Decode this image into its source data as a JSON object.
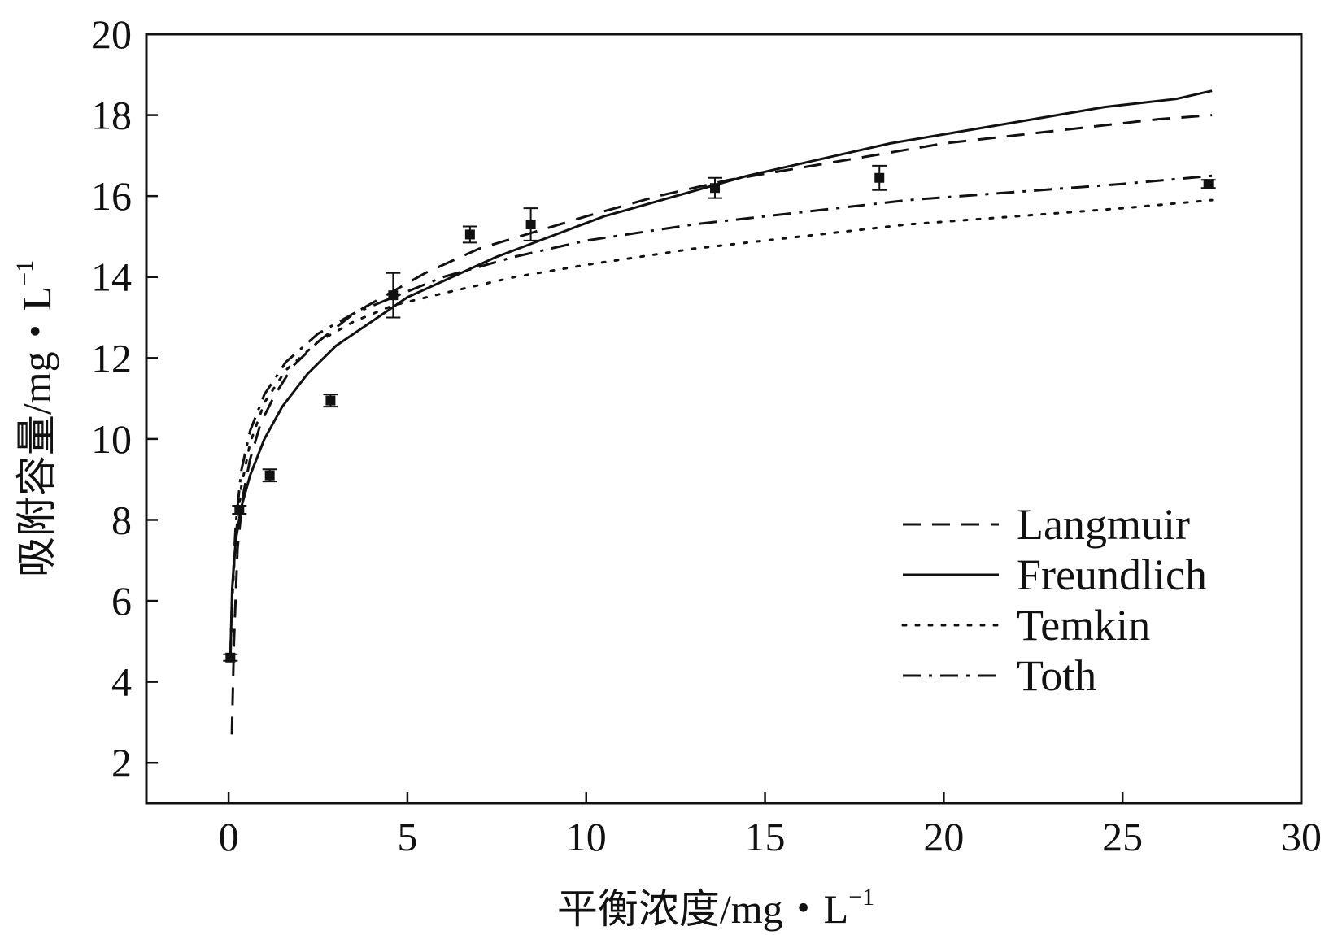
{
  "chart_data": {
    "type": "line",
    "title": "",
    "xlabel": "平衡浓度/mg・L",
    "xlabel_sup": "−1",
    "ylabel": "吸附容量/mg・L",
    "ylabel_sup": "−1",
    "xlim": [
      -2.3,
      30
    ],
    "ylim": [
      1,
      20
    ],
    "xticks": [
      0,
      5,
      10,
      15,
      20,
      25,
      30
    ],
    "yticks": [
      2,
      4,
      6,
      8,
      10,
      12,
      14,
      16,
      18,
      20
    ],
    "xtick_labels": [
      "0",
      "5",
      "10",
      "15",
      "20",
      "25",
      "30"
    ],
    "ytick_labels": [
      "2",
      "4",
      "6",
      "8",
      "10",
      "12",
      "14",
      "16",
      "18",
      "20"
    ],
    "grid": false,
    "legend_position": "bottom-right",
    "observed": {
      "x": [
        0.05,
        0.3,
        1.15,
        2.85,
        4.6,
        6.75,
        8.45,
        13.6,
        18.2,
        27.4
      ],
      "y": [
        4.6,
        8.25,
        9.1,
        10.95,
        13.55,
        15.05,
        15.3,
        16.2,
        16.45,
        16.3
      ],
      "err": [
        0.08,
        0.1,
        0.15,
        0.15,
        0.55,
        0.2,
        0.4,
        0.25,
        0.3,
        0.1
      ]
    },
    "series": [
      {
        "name": "Langmuir",
        "style": "dashed",
        "x": [
          0.09,
          0.15,
          0.25,
          0.4,
          0.6,
          0.9,
          1.3,
          1.8,
          2.5,
          3.5,
          4.5,
          5.5,
          7,
          8.5,
          10,
          12,
          14,
          16,
          18,
          20,
          22,
          24,
          26,
          27.5
        ],
        "y": [
          2.7,
          5.0,
          7.3,
          8.6,
          9.5,
          10.4,
          11.1,
          11.8,
          12.4,
          13.1,
          13.6,
          14.1,
          14.7,
          15.1,
          15.5,
          16.0,
          16.4,
          16.7,
          17.0,
          17.3,
          17.5,
          17.7,
          17.9,
          18.0
        ]
      },
      {
        "name": "Freundlich",
        "style": "solid",
        "x": [
          0.05,
          0.1,
          0.2,
          0.35,
          0.6,
          1.0,
          1.5,
          2.2,
          3.0,
          4.0,
          5.0,
          6.0,
          7.5,
          9.0,
          10.5,
          12.5,
          14.5,
          16.5,
          18.5,
          20.5,
          22.5,
          24.5,
          26.5,
          27.5
        ],
        "y": [
          4.6,
          6.3,
          7.5,
          8.3,
          9.1,
          10.0,
          10.8,
          11.6,
          12.3,
          12.9,
          13.5,
          13.9,
          14.5,
          15.0,
          15.5,
          16.0,
          16.5,
          16.9,
          17.3,
          17.6,
          17.9,
          18.2,
          18.4,
          18.6
        ]
      },
      {
        "name": "Temkin",
        "style": "dotted",
        "x": [
          0.05,
          0.1,
          0.2,
          0.35,
          0.6,
          1.0,
          1.6,
          2.5,
          3.5,
          4.6,
          6.0,
          8.0,
          10.0,
          13.0,
          16.0,
          19.0,
          22.0,
          25.0,
          27.5
        ],
        "y": [
          4.6,
          6.0,
          7.6,
          8.8,
          9.9,
          10.9,
          11.7,
          12.4,
          12.9,
          13.3,
          13.6,
          14.0,
          14.3,
          14.7,
          15.0,
          15.3,
          15.5,
          15.7,
          15.9
        ]
      },
      {
        "name": "Toth",
        "style": "dashdot",
        "x": [
          0.05,
          0.1,
          0.2,
          0.35,
          0.6,
          1.0,
          1.6,
          2.5,
          3.5,
          4.6,
          6.0,
          8.0,
          10.0,
          13.0,
          16.0,
          19.0,
          22.0,
          25.0,
          27.5
        ],
        "y": [
          4.6,
          6.2,
          7.9,
          9.2,
          10.2,
          11.1,
          11.9,
          12.6,
          13.1,
          13.5,
          14.0,
          14.5,
          14.9,
          15.3,
          15.6,
          15.9,
          16.1,
          16.3,
          16.5
        ]
      }
    ]
  }
}
